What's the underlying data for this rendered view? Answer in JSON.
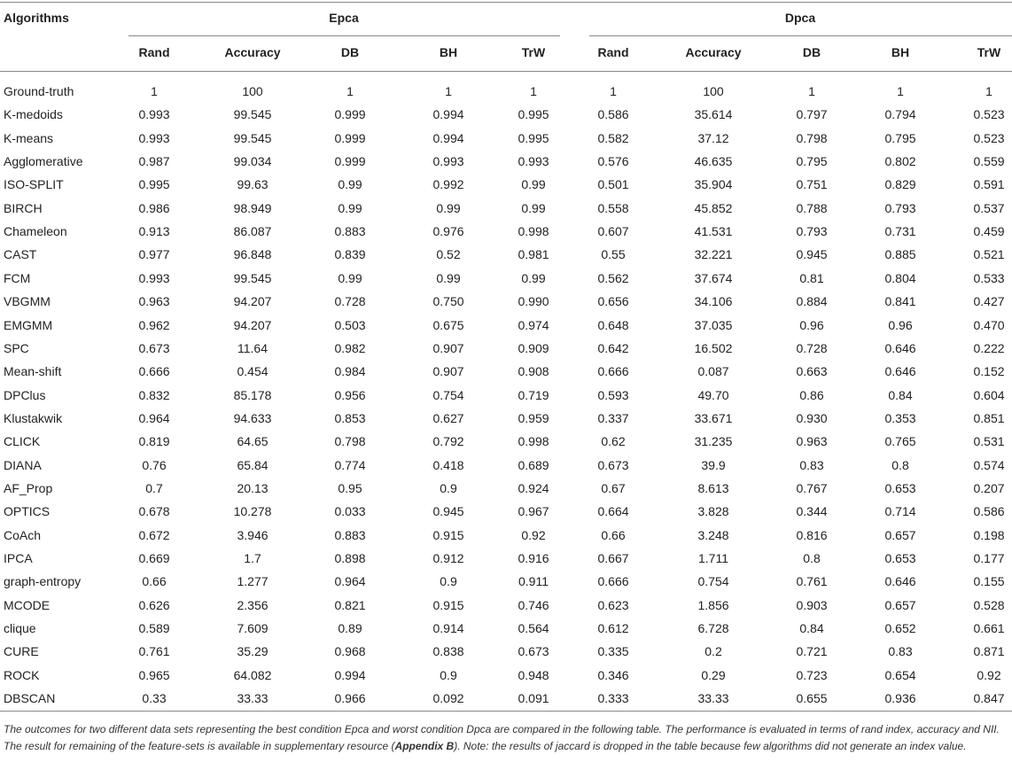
{
  "table": {
    "header": [
      "Algorithms",
      "Epca",
      "Dpca"
    ],
    "subheader": [
      "Rand",
      "Accuracy",
      "DB",
      "BH",
      "TrW",
      "Rand",
      "Accuracy",
      "DB",
      "BH",
      "TrW"
    ],
    "rows": [
      [
        "Ground-truth",
        "1",
        "100",
        "1",
        "1",
        "1",
        "1",
        "100",
        "1",
        "1",
        "1"
      ],
      [
        "K-medoids",
        "0.993",
        "99.545",
        "0.999",
        "0.994",
        "0.995",
        "0.586",
        "35.614",
        "0.797",
        "0.794",
        "0.523"
      ],
      [
        "K-means",
        "0.993",
        "99.545",
        "0.999",
        "0.994",
        "0.995",
        "0.582",
        "37.12",
        "0.798",
        "0.795",
        "0.523"
      ],
      [
        "Agglomerative",
        "0.987",
        "99.034",
        "0.999",
        "0.993",
        "0.993",
        "0.576",
        "46.635",
        "0.795",
        "0.802",
        "0.559"
      ],
      [
        "ISO-SPLIT",
        "0.995",
        "99.63",
        "0.99",
        "0.992",
        "0.99",
        "0.501",
        "35.904",
        "0.751",
        "0.829",
        "0.591"
      ],
      [
        "BIRCH",
        "0.986",
        "98.949",
        "0.99",
        "0.99",
        "0.99",
        "0.558",
        "45.852",
        "0.788",
        "0.793",
        "0.537"
      ],
      [
        "Chameleon",
        "0.913",
        "86.087",
        "0.883",
        "0.976",
        "0.998",
        "0.607",
        "41.531",
        "0.793",
        "0.731",
        "0.459"
      ],
      [
        "CAST",
        "0.977",
        "96.848",
        "0.839",
        "0.52",
        "0.981",
        "0.55",
        "32.221",
        "0.945",
        "0.885",
        "0.521"
      ],
      [
        "FCM",
        "0.993",
        "99.545",
        "0.99",
        "0.99",
        "0.99",
        "0.562",
        "37.674",
        "0.81",
        "0.804",
        "0.533"
      ],
      [
        "VBGMM",
        "0.963",
        "94.207",
        "0.728",
        "0.750",
        "0.990",
        "0.656",
        "34.106",
        "0.884",
        "0.841",
        "0.427"
      ],
      [
        "EMGMM",
        "0.962",
        "94.207",
        "0.503",
        "0.675",
        "0.974",
        "0.648",
        "37.035",
        "0.96",
        "0.96",
        "0.470"
      ],
      [
        "SPC",
        "0.673",
        "11.64",
        "0.982",
        "0.907",
        "0.909",
        "0.642",
        "16.502",
        "0.728",
        "0.646",
        "0.222"
      ],
      [
        "Mean-shift",
        "0.666",
        "0.454",
        "0.984",
        "0.907",
        "0.908",
        "0.666",
        "0.087",
        "0.663",
        "0.646",
        "0.152"
      ],
      [
        "DPClus",
        "0.832",
        "85.178",
        "0.956",
        "0.754",
        "0.719",
        "0.593",
        "49.70",
        "0.86",
        "0.84",
        "0.604"
      ],
      [
        "Klustakwik",
        "0.964",
        "94.633",
        "0.853",
        "0.627",
        "0.959",
        "0.337",
        "33.671",
        "0.930",
        "0.353",
        "0.851"
      ],
      [
        "CLICK",
        "0.819",
        "64.65",
        "0.798",
        "0.792",
        "0.998",
        "0.62",
        "31.235",
        "0.963",
        "0.765",
        "0.531"
      ],
      [
        "DIANA",
        "0.76",
        "65.84",
        "0.774",
        "0.418",
        "0.689",
        "0.673",
        "39.9",
        "0.83",
        "0.8",
        "0.574"
      ],
      [
        "AF_Prop",
        "0.7",
        "20.13",
        "0.95",
        "0.9",
        "0.924",
        "0.67",
        "8.613",
        "0.767",
        "0.653",
        "0.207"
      ],
      [
        "OPTICS",
        "0.678",
        "10.278",
        "0.033",
        "0.945",
        "0.967",
        "0.664",
        "3.828",
        "0.344",
        "0.714",
        "0.586"
      ],
      [
        "CoAch",
        "0.672",
        "3.946",
        "0.883",
        "0.915",
        "0.92",
        "0.66",
        "3.248",
        "0.816",
        "0.657",
        "0.198"
      ],
      [
        "IPCA",
        "0.669",
        "1.7",
        "0.898",
        "0.912",
        "0.916",
        "0.667",
        "1.711",
        "0.8",
        "0.653",
        "0.177"
      ],
      [
        "graph-entropy",
        "0.66",
        "1.277",
        "0.964",
        "0.9",
        "0.911",
        "0.666",
        "0.754",
        "0.761",
        "0.646",
        "0.155"
      ],
      [
        "MCODE",
        "0.626",
        "2.356",
        "0.821",
        "0.915",
        "0.746",
        "0.623",
        "1.856",
        "0.903",
        "0.657",
        "0.528"
      ],
      [
        "clique",
        "0.589",
        "7.609",
        "0.89",
        "0.914",
        "0.564",
        "0.612",
        "6.728",
        "0.84",
        "0.652",
        "0.661"
      ],
      [
        "CURE",
        "0.761",
        "35.29",
        "0.968",
        "0.838",
        "0.673",
        "0.335",
        "0.2",
        "0.721",
        "0.83",
        "0.871"
      ],
      [
        "ROCK",
        "0.965",
        "64.082",
        "0.994",
        "0.9",
        "0.948",
        "0.346",
        "0.29",
        "0.723",
        "0.654",
        "0.92"
      ],
      [
        "DBSCAN",
        "0.33",
        "33.33",
        "0.966",
        "0.092",
        "0.091",
        "0.333",
        "33.33",
        "0.655",
        "0.936",
        "0.847"
      ]
    ],
    "footnote": {
      "before": "The outcomes for two different data sets representing the best condition Epca and worst condition Dpca are compared in the following table. The performance is evaluated in terms of rand index, accuracy and NII. The result for remaining of the feature-sets is available in supplementary resource (",
      "bold": "Appendix B",
      "after": "). Note: the results of jaccard is dropped in the table because few algorithms did not generate an index value."
    }
  }
}
